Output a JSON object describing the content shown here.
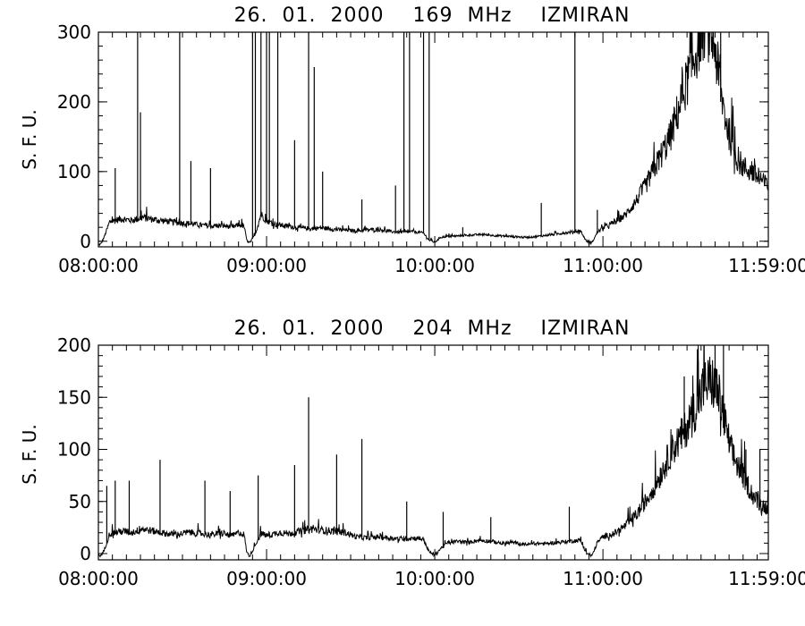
{
  "colors": {
    "background": "#ffffff",
    "ink": "#000000"
  },
  "chart_data": [
    {
      "type": "line",
      "title": "26.  01.  2000    169  MHz    IZMIRAN",
      "ylabel": "S. F. U.",
      "xlabel": "",
      "x_tick_labels": [
        "08:00:00",
        "09:00:00",
        "10:00:00",
        "11:00:00",
        "11:59:00"
      ],
      "y_tick_labels": [
        "0",
        "100",
        "200",
        "300"
      ],
      "yticks": [
        0,
        100,
        200,
        300
      ],
      "ylim": [
        -8,
        300
      ],
      "xlim_minutes": [
        0,
        239
      ],
      "grid": false,
      "series": [
        {
          "x_minutes": [
            0,
            1,
            2,
            4,
            8,
            12,
            16,
            20,
            24,
            28,
            32,
            36,
            40,
            44,
            48,
            50,
            52,
            53,
            54,
            56,
            58,
            60,
            62,
            64,
            68,
            72,
            76,
            80,
            84,
            88,
            92,
            96,
            100,
            104,
            108,
            112,
            116,
            118,
            120,
            122,
            124,
            128,
            132,
            136,
            140,
            144,
            148,
            152,
            156,
            160,
            164,
            168,
            172,
            174,
            176,
            178,
            180,
            184,
            188,
            192,
            196,
            200,
            204,
            208,
            212,
            216,
            218,
            220,
            222,
            224,
            226,
            228,
            230,
            232,
            234,
            236,
            239
          ],
          "values": [
            -6,
            -4,
            5,
            26,
            30,
            28,
            32,
            29,
            27,
            25,
            24,
            22,
            20,
            21,
            19,
            22,
            20,
            0,
            -3,
            10,
            36,
            28,
            24,
            22,
            20,
            18,
            17,
            18,
            16,
            15,
            14,
            15,
            16,
            13,
            12,
            13,
            11,
            1,
            -2,
            5,
            6,
            7,
            8,
            9,
            8,
            7,
            6,
            5,
            6,
            8,
            10,
            12,
            14,
            0,
            -3,
            12,
            18,
            25,
            35,
            55,
            80,
            110,
            140,
            190,
            240,
            290,
            285,
            260,
            200,
            160,
            130,
            110,
            100,
            95,
            90,
            82,
            75
          ]
        }
      ],
      "spikes": [
        {
          "x_minutes": 6,
          "value": 105
        },
        {
          "x_minutes": 14,
          "value": 300
        },
        {
          "x_minutes": 15,
          "value": 185
        },
        {
          "x_minutes": 29,
          "value": 300
        },
        {
          "x_minutes": 33,
          "value": 115
        },
        {
          "x_minutes": 40,
          "value": 105
        },
        {
          "x_minutes": 55,
          "value": 300
        },
        {
          "x_minutes": 56,
          "value": 300
        },
        {
          "x_minutes": 58,
          "value": 300
        },
        {
          "x_minutes": 60,
          "value": 300
        },
        {
          "x_minutes": 61,
          "value": 300
        },
        {
          "x_minutes": 64,
          "value": 300
        },
        {
          "x_minutes": 70,
          "value": 145
        },
        {
          "x_minutes": 75,
          "value": 300
        },
        {
          "x_minutes": 77,
          "value": 250
        },
        {
          "x_minutes": 80,
          "value": 100
        },
        {
          "x_minutes": 94,
          "value": 60
        },
        {
          "x_minutes": 106,
          "value": 80
        },
        {
          "x_minutes": 109,
          "value": 300
        },
        {
          "x_minutes": 111,
          "value": 300
        },
        {
          "x_minutes": 116,
          "value": 300
        },
        {
          "x_minutes": 118,
          "value": 300
        },
        {
          "x_minutes": 130,
          "value": 20
        },
        {
          "x_minutes": 158,
          "value": 55
        },
        {
          "x_minutes": 170,
          "value": 300
        },
        {
          "x_minutes": 178,
          "value": 45
        },
        {
          "x_minutes": 214,
          "value": 300
        },
        {
          "x_minutes": 215,
          "value": 300
        },
        {
          "x_minutes": 222,
          "value": 300
        },
        {
          "x_minutes": 230,
          "value": 110
        }
      ]
    },
    {
      "type": "line",
      "title": "26.  01.  2000    204  MHz    IZMIRAN",
      "ylabel": "S. F. U.",
      "xlabel": "",
      "x_tick_labels": [
        "08:00:00",
        "09:00:00",
        "10:00:00",
        "11:00:00",
        "11:59:00"
      ],
      "y_tick_labels": [
        "0",
        "50",
        "100",
        "150",
        "200"
      ],
      "yticks": [
        0,
        50,
        100,
        150,
        200
      ],
      "ylim": [
        -6,
        200
      ],
      "xlim_minutes": [
        0,
        239
      ],
      "grid": false,
      "series": [
        {
          "x_minutes": [
            0,
            1,
            2,
            4,
            8,
            12,
            16,
            20,
            24,
            28,
            32,
            36,
            40,
            44,
            48,
            50,
            52,
            53,
            54,
            56,
            58,
            60,
            62,
            64,
            68,
            72,
            76,
            80,
            84,
            88,
            92,
            96,
            100,
            104,
            108,
            112,
            116,
            118,
            120,
            122,
            124,
            128,
            132,
            136,
            140,
            144,
            148,
            152,
            156,
            160,
            164,
            168,
            172,
            174,
            176,
            178,
            180,
            184,
            188,
            192,
            196,
            200,
            204,
            208,
            212,
            216,
            218,
            220,
            222,
            224,
            226,
            228,
            230,
            232,
            234,
            236,
            239
          ],
          "values": [
            -3,
            -2,
            2,
            18,
            20,
            19,
            22,
            20,
            18,
            17,
            19,
            18,
            17,
            18,
            16,
            19,
            17,
            0,
            -3,
            8,
            18,
            16,
            17,
            19,
            18,
            20,
            22,
            21,
            20,
            19,
            15,
            14,
            15,
            14,
            13,
            14,
            13,
            1,
            -2,
            4,
            9,
            11,
            10,
            12,
            11,
            9,
            10,
            8,
            9,
            9,
            10,
            11,
            12,
            0,
            -3,
            10,
            15,
            18,
            25,
            35,
            50,
            68,
            90,
            105,
            125,
            150,
            155,
            150,
            135,
            110,
            90,
            80,
            70,
            60,
            50,
            45,
            40
          ]
        }
      ],
      "spikes": [
        {
          "x_minutes": 3,
          "value": 65
        },
        {
          "x_minutes": 6,
          "value": 70
        },
        {
          "x_minutes": 11,
          "value": 70
        },
        {
          "x_minutes": 22,
          "value": 90
        },
        {
          "x_minutes": 38,
          "value": 70
        },
        {
          "x_minutes": 47,
          "value": 60
        },
        {
          "x_minutes": 57,
          "value": 75
        },
        {
          "x_minutes": 70,
          "value": 85
        },
        {
          "x_minutes": 75,
          "value": 150
        },
        {
          "x_minutes": 85,
          "value": 95
        },
        {
          "x_minutes": 94,
          "value": 110
        },
        {
          "x_minutes": 110,
          "value": 50
        },
        {
          "x_minutes": 123,
          "value": 40
        },
        {
          "x_minutes": 140,
          "value": 35
        },
        {
          "x_minutes": 168,
          "value": 45
        },
        {
          "x_minutes": 209,
          "value": 170
        },
        {
          "x_minutes": 214,
          "value": 185
        },
        {
          "x_minutes": 220,
          "value": 200
        },
        {
          "x_minutes": 223,
          "value": 205
        },
        {
          "x_minutes": 231,
          "value": 100
        },
        {
          "x_minutes": 236,
          "value": 100
        }
      ]
    }
  ]
}
